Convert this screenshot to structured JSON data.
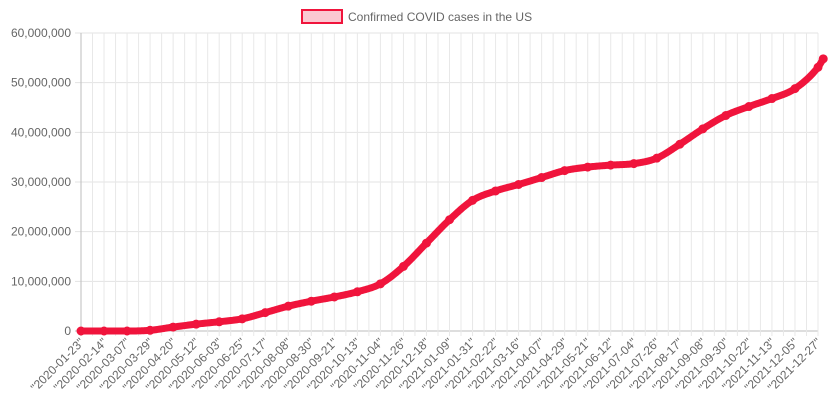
{
  "chart_data": {
    "type": "line",
    "title": "",
    "xlabel": "",
    "ylabel": "",
    "legend_position": "top-center",
    "grid": true,
    "color": "#f0143c",
    "fill_color": "#fbc8d2",
    "ylim": [
      0,
      60000000
    ],
    "yticks": [
      {
        "value": 0,
        "label": "0"
      },
      {
        "value": 10000000,
        "label": "10,000,000"
      },
      {
        "value": 20000000,
        "label": "20,000,000"
      },
      {
        "value": 30000000,
        "label": "30,000,000"
      },
      {
        "value": 40000000,
        "label": "40,000,000"
      },
      {
        "value": 50000000,
        "label": "50,000,000"
      },
      {
        "value": 60000000,
        "label": "60,000,000"
      }
    ],
    "xticks": [
      "\"2020-01-23\"",
      "\"2020-02-14\"",
      "\"2020-03-07\"",
      "\"2020-03-29\"",
      "\"2020-04-20\"",
      "\"2020-05-12\"",
      "\"2020-06-03\"",
      "\"2020-06-25\"",
      "\"2020-07-17\"",
      "\"2020-08-08\"",
      "\"2020-08-30\"",
      "\"2020-09-21\"",
      "\"2020-10-13\"",
      "\"2020-11-04\"",
      "\"2020-11-26\"",
      "\"2020-12-18\"",
      "\"2021-01-09\"",
      "\"2021-01-31\"",
      "\"2021-02-22\"",
      "\"2021-03-16\"",
      "\"2021-04-07\"",
      "\"2021-04-29\"",
      "\"2021-05-21\"",
      "\"2021-06-12\"",
      "\"2021-07-04\"",
      "\"2021-07-26\"",
      "\"2021-08-17\"",
      "\"2021-09-08\"",
      "\"2021-09-30\"",
      "\"2021-10-22\"",
      "\"2021-11-13\"",
      "\"2021-12-05\"",
      "\"2021-12-27\""
    ],
    "series": [
      {
        "name": "Confirmed COVID cases in the US",
        "points": [
          {
            "x": "2020-01-23",
            "y": 0
          },
          {
            "x": "2020-02-14",
            "y": 15
          },
          {
            "x": "2020-03-07",
            "y": 400
          },
          {
            "x": "2020-03-29",
            "y": 140000
          },
          {
            "x": "2020-04-20",
            "y": 790000
          },
          {
            "x": "2020-05-12",
            "y": 1380000
          },
          {
            "x": "2020-06-03",
            "y": 1860000
          },
          {
            "x": "2020-06-25",
            "y": 2450000
          },
          {
            "x": "2020-07-17",
            "y": 3700000
          },
          {
            "x": "2020-08-08",
            "y": 5000000
          },
          {
            "x": "2020-08-30",
            "y": 6000000
          },
          {
            "x": "2020-09-21",
            "y": 6850000
          },
          {
            "x": "2020-10-13",
            "y": 7900000
          },
          {
            "x": "2020-11-04",
            "y": 9500000
          },
          {
            "x": "2020-11-26",
            "y": 13000000
          },
          {
            "x": "2020-12-18",
            "y": 17700000
          },
          {
            "x": "2021-01-09",
            "y": 22400000
          },
          {
            "x": "2021-01-31",
            "y": 26300000
          },
          {
            "x": "2021-02-22",
            "y": 28200000
          },
          {
            "x": "2021-03-16",
            "y": 29500000
          },
          {
            "x": "2021-04-07",
            "y": 30900000
          },
          {
            "x": "2021-04-29",
            "y": 32300000
          },
          {
            "x": "2021-05-21",
            "y": 33000000
          },
          {
            "x": "2021-06-12",
            "y": 33400000
          },
          {
            "x": "2021-07-04",
            "y": 33700000
          },
          {
            "x": "2021-07-26",
            "y": 34800000
          },
          {
            "x": "2021-08-17",
            "y": 37600000
          },
          {
            "x": "2021-09-08",
            "y": 40700000
          },
          {
            "x": "2021-09-30",
            "y": 43400000
          },
          {
            "x": "2021-10-22",
            "y": 45200000
          },
          {
            "x": "2021-11-13",
            "y": 46800000
          },
          {
            "x": "2021-12-05",
            "y": 48800000
          },
          {
            "x": "2021-12-27",
            "y": 53100000
          },
          {
            "x": "2022-01-01",
            "y": 54800000
          }
        ]
      }
    ]
  }
}
